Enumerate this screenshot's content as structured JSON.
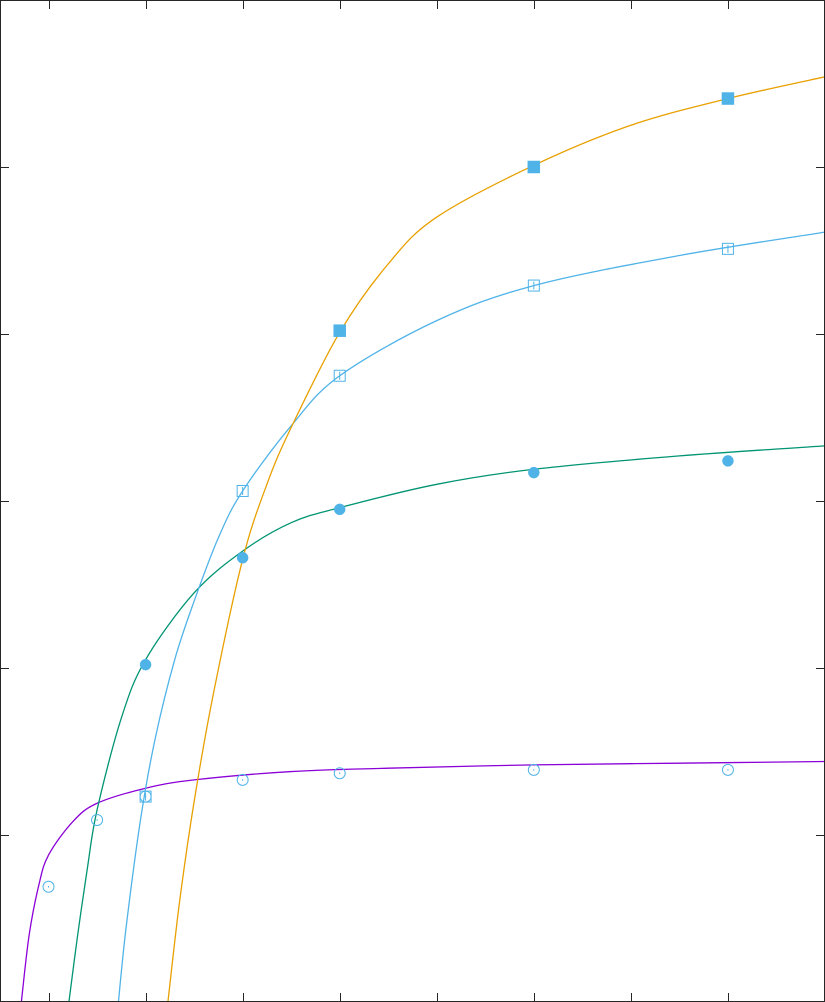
{
  "chart_data": {
    "type": "scatter",
    "xlim": [
      0,
      8.5
    ],
    "ylim": [
      0,
      6
    ],
    "x_ticks": [
      0.5,
      1.5,
      2.5,
      3.5,
      4.5,
      5.5,
      6.5,
      7.5,
      8.5
    ],
    "y_ticks": [
      1,
      2,
      3,
      4,
      5
    ],
    "tick_labels_shown": false,
    "grid": false,
    "legend": "none",
    "series": [
      {
        "color": "#8b00d6",
        "marker": "circle-open",
        "marker_color": "#4fb3e8",
        "points": [
          {
            "x": 0.5,
            "y": 0.69
          },
          {
            "x": 1.0,
            "y": 1.09
          },
          {
            "x": 1.5,
            "y": 1.23
          },
          {
            "x": 2.5,
            "y": 1.33
          },
          {
            "x": 3.5,
            "y": 1.37
          },
          {
            "x": 5.5,
            "y": 1.39
          },
          {
            "x": 7.5,
            "y": 1.39
          }
        ],
        "curve": [
          {
            "x": 0.22,
            "y": 0.0
          },
          {
            "x": 0.3,
            "y": 0.4
          },
          {
            "x": 0.4,
            "y": 0.7
          },
          {
            "x": 0.5,
            "y": 0.88
          },
          {
            "x": 0.75,
            "y": 1.08
          },
          {
            "x": 1.0,
            "y": 1.19
          },
          {
            "x": 1.5,
            "y": 1.28
          },
          {
            "x": 2.0,
            "y": 1.33
          },
          {
            "x": 3.0,
            "y": 1.38
          },
          {
            "x": 4.0,
            "y": 1.4
          },
          {
            "x": 5.5,
            "y": 1.42
          },
          {
            "x": 7.0,
            "y": 1.43
          },
          {
            "x": 8.5,
            "y": 1.44
          }
        ]
      },
      {
        "color": "#009473",
        "marker": "circle-filled",
        "marker_color": "#4fb3e8",
        "points": [
          {
            "x": 1.5,
            "y": 2.02
          },
          {
            "x": 2.5,
            "y": 2.66
          },
          {
            "x": 3.5,
            "y": 2.95
          },
          {
            "x": 5.5,
            "y": 3.17
          },
          {
            "x": 7.5,
            "y": 3.24
          }
        ],
        "curve": [
          {
            "x": 0.71,
            "y": 0.0
          },
          {
            "x": 0.8,
            "y": 0.4
          },
          {
            "x": 0.9,
            "y": 0.8
          },
          {
            "x": 1.0,
            "y": 1.15
          },
          {
            "x": 1.25,
            "y": 1.7
          },
          {
            "x": 1.5,
            "y": 2.05
          },
          {
            "x": 2.0,
            "y": 2.45
          },
          {
            "x": 2.5,
            "y": 2.7
          },
          {
            "x": 3.0,
            "y": 2.87
          },
          {
            "x": 3.5,
            "y": 2.96
          },
          {
            "x": 4.5,
            "y": 3.1
          },
          {
            "x": 5.5,
            "y": 3.19
          },
          {
            "x": 7.0,
            "y": 3.27
          },
          {
            "x": 8.5,
            "y": 3.33
          }
        ]
      },
      {
        "color": "#4fb3e8",
        "marker": "square-open",
        "marker_color": "#4fb3e8",
        "points": [
          {
            "x": 1.5,
            "y": 1.23
          },
          {
            "x": 2.5,
            "y": 3.06
          },
          {
            "x": 3.5,
            "y": 3.75
          },
          {
            "x": 5.5,
            "y": 4.29
          },
          {
            "x": 7.5,
            "y": 4.51
          }
        ],
        "curve": [
          {
            "x": 1.22,
            "y": 0.0
          },
          {
            "x": 1.3,
            "y": 0.45
          },
          {
            "x": 1.45,
            "y": 1.1
          },
          {
            "x": 1.6,
            "y": 1.58
          },
          {
            "x": 1.8,
            "y": 2.05
          },
          {
            "x": 2.0,
            "y": 2.4
          },
          {
            "x": 2.25,
            "y": 2.78
          },
          {
            "x": 2.5,
            "y": 3.06
          },
          {
            "x": 3.0,
            "y": 3.45
          },
          {
            "x": 3.5,
            "y": 3.75
          },
          {
            "x": 4.5,
            "y": 4.08
          },
          {
            "x": 5.5,
            "y": 4.29
          },
          {
            "x": 7.0,
            "y": 4.47
          },
          {
            "x": 8.5,
            "y": 4.61
          }
        ]
      },
      {
        "color": "#e8a000",
        "marker": "square-filled",
        "marker_color": "#4fb3e8",
        "points": [
          {
            "x": 3.5,
            "y": 4.02
          },
          {
            "x": 5.5,
            "y": 5.0
          },
          {
            "x": 7.5,
            "y": 5.41
          }
        ],
        "curve": [
          {
            "x": 1.73,
            "y": 0.0
          },
          {
            "x": 1.85,
            "y": 0.6
          },
          {
            "x": 2.0,
            "y": 1.2
          },
          {
            "x": 2.2,
            "y": 1.85
          },
          {
            "x": 2.5,
            "y": 2.65
          },
          {
            "x": 2.75,
            "y": 3.1
          },
          {
            "x": 3.0,
            "y": 3.44
          },
          {
            "x": 3.5,
            "y": 4.01
          },
          {
            "x": 4.0,
            "y": 4.42
          },
          {
            "x": 4.5,
            "y": 4.7
          },
          {
            "x": 5.5,
            "y": 5.01
          },
          {
            "x": 6.5,
            "y": 5.25
          },
          {
            "x": 7.5,
            "y": 5.41
          },
          {
            "x": 8.5,
            "y": 5.54
          }
        ]
      }
    ]
  }
}
